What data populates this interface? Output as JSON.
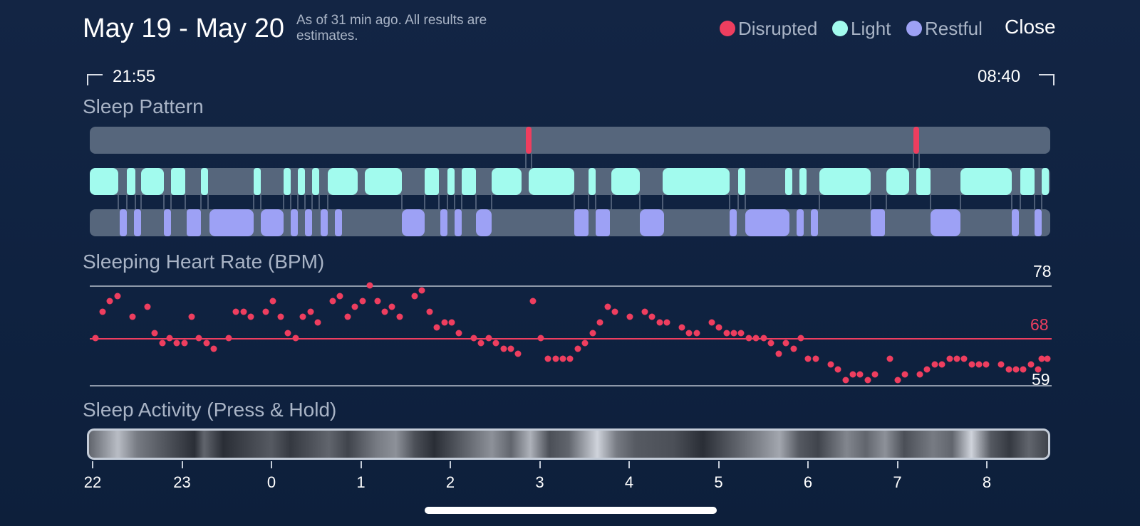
{
  "header": {
    "date_range": "May 19 - May 20",
    "estimate_note": "As of 31 min ago. All results are estimates.",
    "close_label": "Close"
  },
  "legend": [
    {
      "label": "Disrupted",
      "color": "#ee3e5f"
    },
    {
      "label": "Light",
      "color": "#a2fbee"
    },
    {
      "label": "Restful",
      "color": "#9da1f5"
    }
  ],
  "times": {
    "start": "21:55",
    "end": "08:40"
  },
  "sections": {
    "sleep_pattern": "Sleep Pattern",
    "heart_rate": "Sleeping Heart Rate (BPM)",
    "activity": "Sleep Activity (Press & Hold)"
  },
  "heart_rate": {
    "max": "78",
    "avg": "68",
    "min": "59"
  },
  "time_axis": [
    "22",
    "23",
    "0",
    "1",
    "2",
    "3",
    "4",
    "5",
    "6",
    "7",
    "8"
  ],
  "colors": {
    "disrupted": "#ee3e5f",
    "light": "#a2fbee",
    "restful": "#9da1f5",
    "track": "#56667c"
  }
}
